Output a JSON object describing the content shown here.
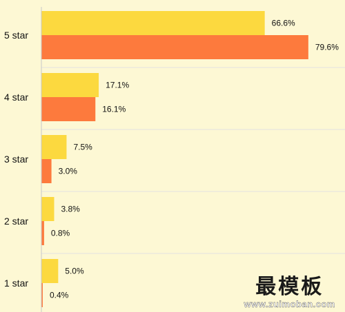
{
  "chart_data": {
    "type": "bar",
    "orientation": "horizontal",
    "categories": [
      "5 star",
      "4 star",
      "3 star",
      "2 star",
      "1  star"
    ],
    "series": [
      {
        "color": "#fcd93f",
        "values": [
          66.6,
          17.1,
          7.5,
          3.8,
          5.0
        ],
        "labels": [
          "66.6%",
          "17.1%",
          "7.5%",
          "3.8%",
          "5.0%"
        ]
      },
      {
        "color": "#fd7a3d",
        "values": [
          79.6,
          16.1,
          3.0,
          0.8,
          0.4
        ],
        "labels": [
          "79.6%",
          "16.1%",
          "3.0%",
          "0.8%",
          "0.4%"
        ]
      }
    ],
    "xlim": [
      0,
      100
    ],
    "grid": false,
    "legend": "none"
  },
  "watermark": {
    "logo": "最模板",
    "url": "www.zuimoban.com"
  },
  "colors": {
    "background": "#fdf8d4",
    "axis": "#c8c8c8",
    "separator": "#e2e2e2"
  }
}
